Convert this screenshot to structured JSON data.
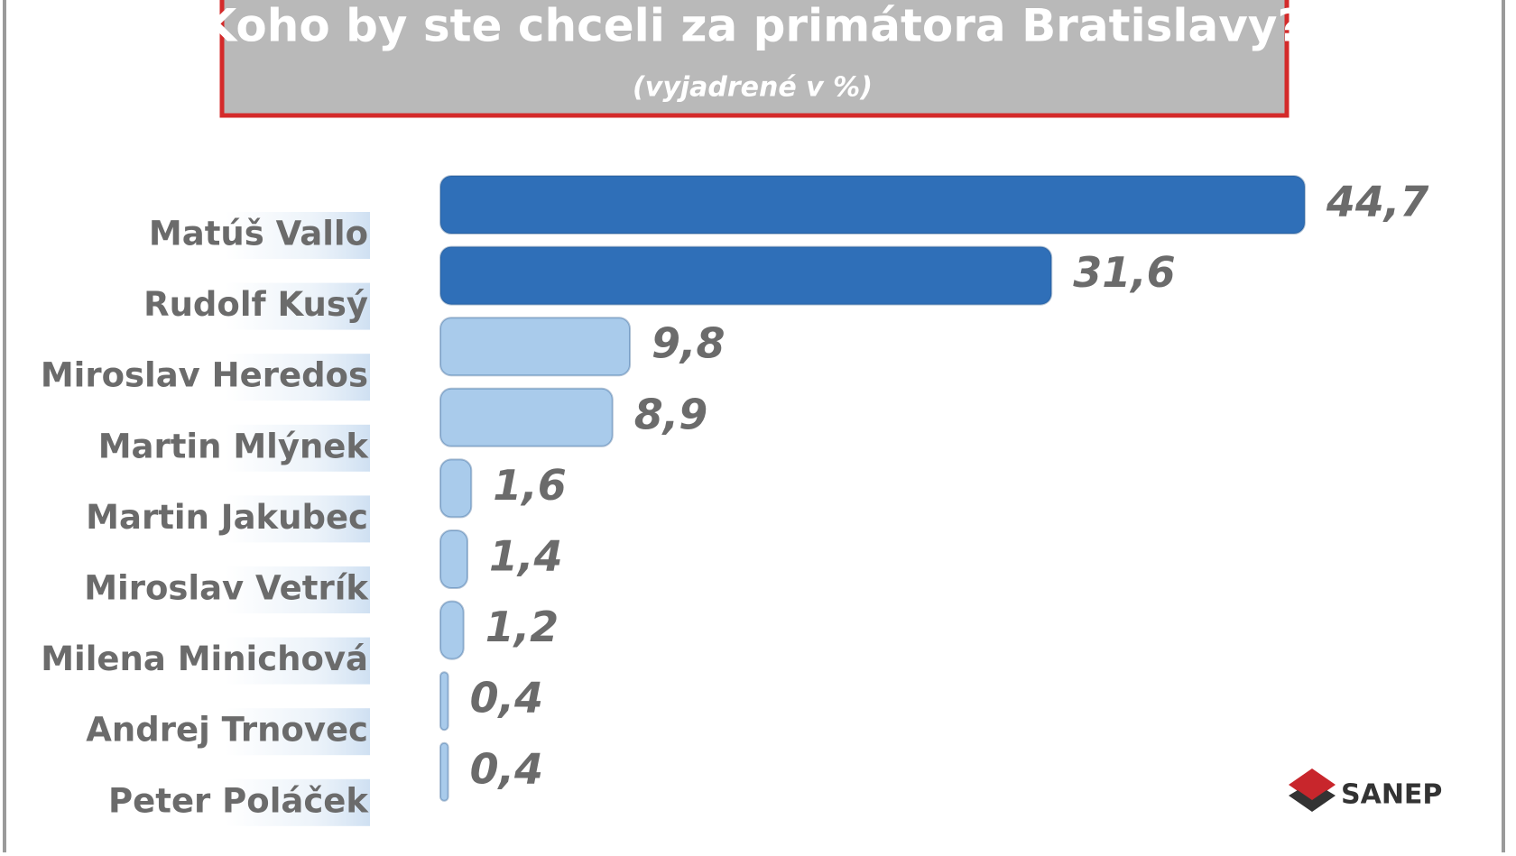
{
  "chart_data": {
    "type": "bar",
    "orientation": "horizontal",
    "title": "Koho by ste chceli za primátora Bratislavy?",
    "subtitle": "(vyjadrené v %)",
    "categories": [
      "Matúš Vallo",
      "Rudolf Kusý",
      "Miroslav Heredos",
      "Martin Mlýnek",
      "Martin Jakubec",
      "Miroslav Vetrík",
      "Milena Minichová",
      "Andrej Trnovec",
      "Peter Poláček"
    ],
    "values": [
      44.7,
      31.6,
      9.8,
      8.9,
      1.6,
      1.4,
      1.2,
      0.4,
      0.4
    ],
    "value_labels": [
      "44,7",
      "31,6",
      "9,8",
      "8,9",
      "1,6",
      "1,4",
      "1,2",
      "0,4",
      "0,4"
    ],
    "colors": [
      "#2f6fb8",
      "#2f6fb8",
      "#a9cbeb",
      "#a9cbeb",
      "#a9cbeb",
      "#a9cbeb",
      "#a9cbeb",
      "#a9cbeb",
      "#a9cbeb"
    ],
    "source": "SANEP"
  }
}
